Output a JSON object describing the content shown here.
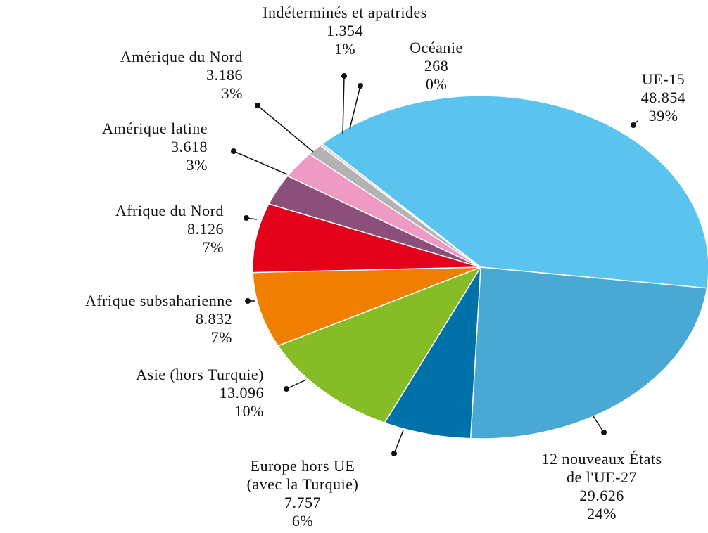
{
  "chart_data": {
    "type": "pie",
    "categories": [
      "UE-15",
      "12 nouveaux États\nde l'UE-27",
      "Europe hors UE\n(avec la Turquie)",
      "Asie (hors Turquie)",
      "Afrique subsaharienne",
      "Afrique du Nord",
      "Amérique latine",
      "Amérique du Nord",
      "Indéterminés et apatrides",
      "Océanie"
    ],
    "values": [
      48854,
      29626,
      7757,
      13096,
      8832,
      8126,
      3618,
      3186,
      1354,
      268
    ],
    "value_labels": [
      "48.854",
      "29.626",
      "7.757",
      "13.096",
      "8.832",
      "8.126",
      "3.618",
      "3.186",
      "1.354",
      "268"
    ],
    "percent_labels": [
      "39%",
      "24%",
      "6%",
      "10%",
      "7%",
      "7%",
      "3%",
      "3%",
      "1%",
      "0%"
    ],
    "colors": [
      "#5bc4ee",
      "#4aa8d4",
      "#0071a8",
      "#86bc25",
      "#f07f00",
      "#e2001a",
      "#8b4f7a",
      "#ee9ac5",
      "#b3b3b3",
      "#d4d4d4"
    ]
  }
}
